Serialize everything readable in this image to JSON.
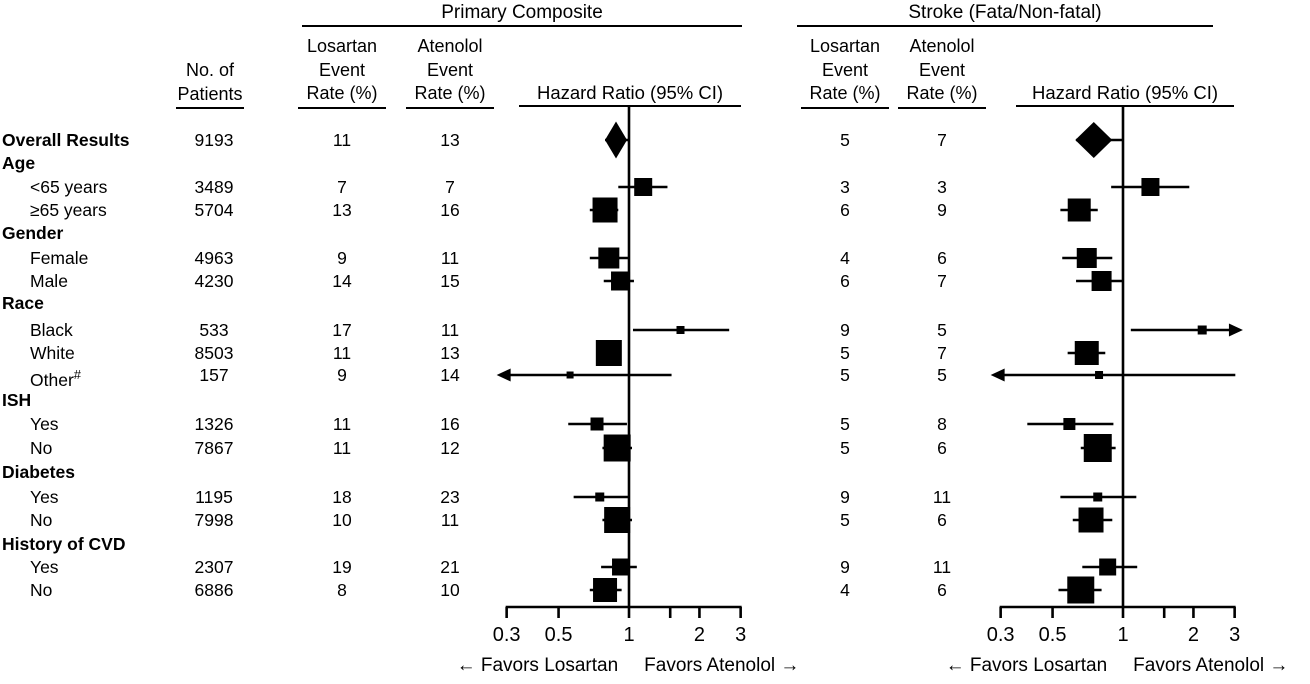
{
  "colors": {
    "ink": "#000000",
    "background": "#ffffff"
  },
  "patients_header": [
    "No. of",
    "Patients"
  ],
  "panels": [
    {
      "id": "pc",
      "title": "Primary Composite",
      "losartan_header": [
        "Losartan",
        "Event",
        "Rate (%)"
      ],
      "atenolol_header": [
        "Atenolol",
        "Event",
        "Rate (%)"
      ],
      "hr_header": "Hazard Ratio (95% CI)",
      "favors_losartan": "← Favors Losartan",
      "favors_atenolol": "Favors Atenolol →"
    },
    {
      "id": "st",
      "title": "Stroke (Fata/Non-fatal)",
      "losartan_header": [
        "Losartan",
        "Event",
        "Rate (%)"
      ],
      "atenolol_header": [
        "Atenolol",
        "Event",
        "Rate (%)"
      ],
      "hr_header": "Hazard Ratio (95% CI)",
      "favors_losartan": "← Favors Losartan",
      "favors_atenolol": "Favors Atenolol →"
    }
  ],
  "chart_data": {
    "type": "forest",
    "xscale": "log",
    "xlim": [
      0.3,
      3
    ],
    "xtick_values": [
      0.3,
      0.5,
      1,
      1.5,
      2,
      3
    ],
    "xtick_labels": [
      "0.3",
      "0.5",
      "1",
      "",
      "2",
      "3"
    ],
    "reference_line": 1,
    "rows": [
      {
        "label": "Overall Results",
        "style": "overall",
        "patients": "9193",
        "pc": {
          "losartan_rate": "11",
          "atenolol_rate": "13",
          "hr": 0.88,
          "ci": [
            0.79,
            1.0
          ],
          "marker": "diamond",
          "diamond_w": 22,
          "diamond_h": 37
        },
        "st": {
          "losartan_rate": "5",
          "atenolol_rate": "7",
          "hr": 0.75,
          "ci": [
            0.63,
            1.0
          ],
          "marker": "diamond",
          "diamond_w": 37,
          "diamond_h": 36
        }
      },
      {
        "label": "Age",
        "style": "group"
      },
      {
        "label": "<65 years",
        "style": "item",
        "patients": "3489",
        "pc": {
          "losartan_rate": "7",
          "atenolol_rate": "7",
          "hr": 1.15,
          "ci": [
            0.9,
            1.46
          ],
          "size": 18
        },
        "st": {
          "losartan_rate": "3",
          "atenolol_rate": "3",
          "hr": 1.31,
          "ci": [
            0.89,
            1.92
          ],
          "size": 18
        }
      },
      {
        "label": "≥65 years",
        "style": "item",
        "patients": "5704",
        "pc": {
          "losartan_rate": "13",
          "atenolol_rate": "16",
          "hr": 0.79,
          "ci": [
            0.68,
            0.9
          ],
          "size": 25
        },
        "st": {
          "losartan_rate": "6",
          "atenolol_rate": "9",
          "hr": 0.65,
          "ci": [
            0.54,
            0.78
          ],
          "size": 23
        }
      },
      {
        "label": "Gender",
        "style": "group"
      },
      {
        "label": "Female",
        "style": "item",
        "patients": "4963",
        "pc": {
          "losartan_rate": "9",
          "atenolol_rate": "11",
          "hr": 0.82,
          "ci": [
            0.68,
            0.99
          ],
          "size": 21
        },
        "st": {
          "losartan_rate": "4",
          "atenolol_rate": "6",
          "hr": 0.7,
          "ci": [
            0.55,
            0.9
          ],
          "size": 20
        }
      },
      {
        "label": "Male",
        "style": "item",
        "patients": "4230",
        "pc": {
          "losartan_rate": "14",
          "atenolol_rate": "15",
          "hr": 0.92,
          "ci": [
            0.78,
            1.05
          ],
          "size": 19
        },
        "st": {
          "losartan_rate": "6",
          "atenolol_rate": "7",
          "hr": 0.81,
          "ci": [
            0.63,
            1.0
          ],
          "size": 20
        }
      },
      {
        "label": "Race",
        "style": "group"
      },
      {
        "label": "Black",
        "style": "item",
        "patients": "533",
        "pc": {
          "losartan_rate": "17",
          "atenolol_rate": "11",
          "hr": 1.66,
          "ci": [
            1.04,
            2.68
          ],
          "size": 8
        },
        "st": {
          "losartan_rate": "9",
          "atenolol_rate": "5",
          "hr": 2.18,
          "ci": [
            1.08,
            3.16
          ],
          "size": 9,
          "arrow_hi": true
        }
      },
      {
        "label": "White",
        "style": "item",
        "patients": "8503",
        "pc": {
          "losartan_rate": "11",
          "atenolol_rate": "13",
          "hr": 0.82,
          "ci": [
            0.74,
            0.92
          ],
          "size": 26
        },
        "st": {
          "losartan_rate": "5",
          "atenolol_rate": "7",
          "hr": 0.7,
          "ci": [
            0.58,
            0.84
          ],
          "size": 24
        }
      },
      {
        "label": "Other",
        "label_sup": "#",
        "style": "item",
        "patients": "157",
        "pc": {
          "losartan_rate": "9",
          "atenolol_rate": "14",
          "hr": 0.56,
          "ci": [
            0.28,
            1.52
          ],
          "size": 7,
          "arrow_lo": true
        },
        "st": {
          "losartan_rate": "5",
          "atenolol_rate": "5",
          "hr": 0.79,
          "ci": [
            0.28,
            3.02
          ],
          "size": 8,
          "arrow_lo": true
        }
      },
      {
        "label": "ISH",
        "style": "group"
      },
      {
        "label": "Yes",
        "style": "item",
        "patients": "1326",
        "pc": {
          "losartan_rate": "11",
          "atenolol_rate": "16",
          "hr": 0.73,
          "ci": [
            0.55,
            0.98
          ],
          "size": 13
        },
        "st": {
          "losartan_rate": "5",
          "atenolol_rate": "8",
          "hr": 0.59,
          "ci": [
            0.39,
            0.91
          ],
          "size": 12
        }
      },
      {
        "label": "No",
        "style": "item",
        "patients": "7867",
        "pc": {
          "losartan_rate": "11",
          "atenolol_rate": "12",
          "hr": 0.89,
          "ci": [
            0.77,
            1.03
          ],
          "size": 27
        },
        "st": {
          "losartan_rate": "5",
          "atenolol_rate": "6",
          "hr": 0.78,
          "ci": [
            0.66,
            0.93
          ],
          "size": 28
        }
      },
      {
        "label": "Diabetes",
        "style": "group"
      },
      {
        "label": "Yes",
        "style": "item",
        "patients": "1195",
        "pc": {
          "losartan_rate": "18",
          "atenolol_rate": "23",
          "hr": 0.75,
          "ci": [
            0.58,
            1.0
          ],
          "size": 9
        },
        "st": {
          "losartan_rate": "9",
          "atenolol_rate": "11",
          "hr": 0.78,
          "ci": [
            0.54,
            1.14
          ],
          "size": 9
        }
      },
      {
        "label": "No",
        "style": "item",
        "patients": "7998",
        "pc": {
          "losartan_rate": "10",
          "atenolol_rate": "11",
          "hr": 0.89,
          "ci": [
            0.77,
            1.03
          ],
          "size": 26
        },
        "st": {
          "losartan_rate": "5",
          "atenolol_rate": "6",
          "hr": 0.73,
          "ci": [
            0.61,
            0.9
          ],
          "size": 25
        }
      },
      {
        "label": "History of CVD",
        "style": "group"
      },
      {
        "label": "Yes",
        "style": "item",
        "patients": "2307",
        "pc": {
          "losartan_rate": "19",
          "atenolol_rate": "21",
          "hr": 0.92,
          "ci": [
            0.76,
            1.08
          ],
          "size": 17
        },
        "st": {
          "losartan_rate": "9",
          "atenolol_rate": "11",
          "hr": 0.86,
          "ci": [
            0.67,
            1.15
          ],
          "size": 17
        }
      },
      {
        "label": "No",
        "style": "item",
        "patients": "6886",
        "pc": {
          "losartan_rate": "8",
          "atenolol_rate": "10",
          "hr": 0.79,
          "ci": [
            0.68,
            0.93
          ],
          "size": 24
        },
        "st": {
          "losartan_rate": "4",
          "atenolol_rate": "6",
          "hr": 0.66,
          "ci": [
            0.53,
            0.81
          ],
          "size": 27
        }
      }
    ]
  }
}
